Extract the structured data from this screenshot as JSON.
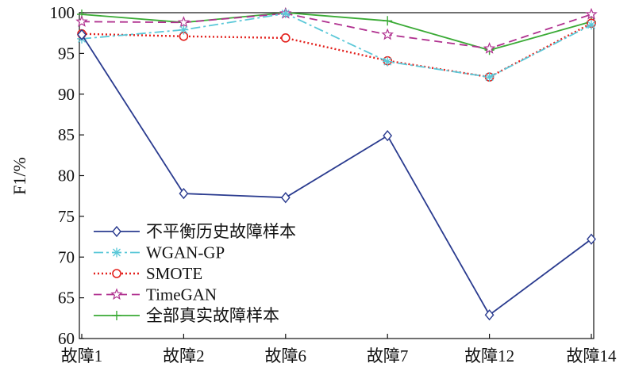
{
  "chart_data": {
    "type": "line",
    "title": "",
    "xlabel": "",
    "ylabel": "F1/%",
    "ylim": [
      60,
      100
    ],
    "yticks": [
      "60",
      "65",
      "70",
      "75",
      "80",
      "85",
      "90",
      "95",
      "100"
    ],
    "categories": [
      "故障1",
      "故障2",
      "故障6",
      "故障7",
      "故障12",
      "故障14"
    ],
    "grid": false,
    "legend_position": "bottom-left",
    "series": [
      {
        "name": "不平衡历史故障样本",
        "values": [
          97.3,
          77.8,
          77.3,
          84.9,
          62.9,
          72.2
        ],
        "color": "#2a3b8f",
        "marker": "diamond",
        "dash": ""
      },
      {
        "name": "WGAN-GP",
        "values": [
          96.8,
          97.9,
          99.9,
          94.0,
          92.1,
          98.5
        ],
        "color": "#5bc8d8",
        "marker": "asterisk",
        "dash": "12 4 3 4"
      },
      {
        "name": "SMOTE",
        "values": [
          97.4,
          97.1,
          96.9,
          94.1,
          92.1,
          98.7
        ],
        "color": "#e3201c",
        "marker": "circle",
        "dash": "2 3"
      },
      {
        "name": "TimeGAN",
        "values": [
          98.9,
          98.8,
          99.9,
          97.3,
          95.6,
          99.8
        ],
        "color": "#b0308f",
        "marker": "star",
        "dash": "10 6"
      },
      {
        "name": "全部真实故障样本",
        "values": [
          99.8,
          98.8,
          100.0,
          99.0,
          95.4,
          98.9
        ],
        "color": "#3aaa35",
        "marker": "plus",
        "dash": ""
      }
    ]
  }
}
